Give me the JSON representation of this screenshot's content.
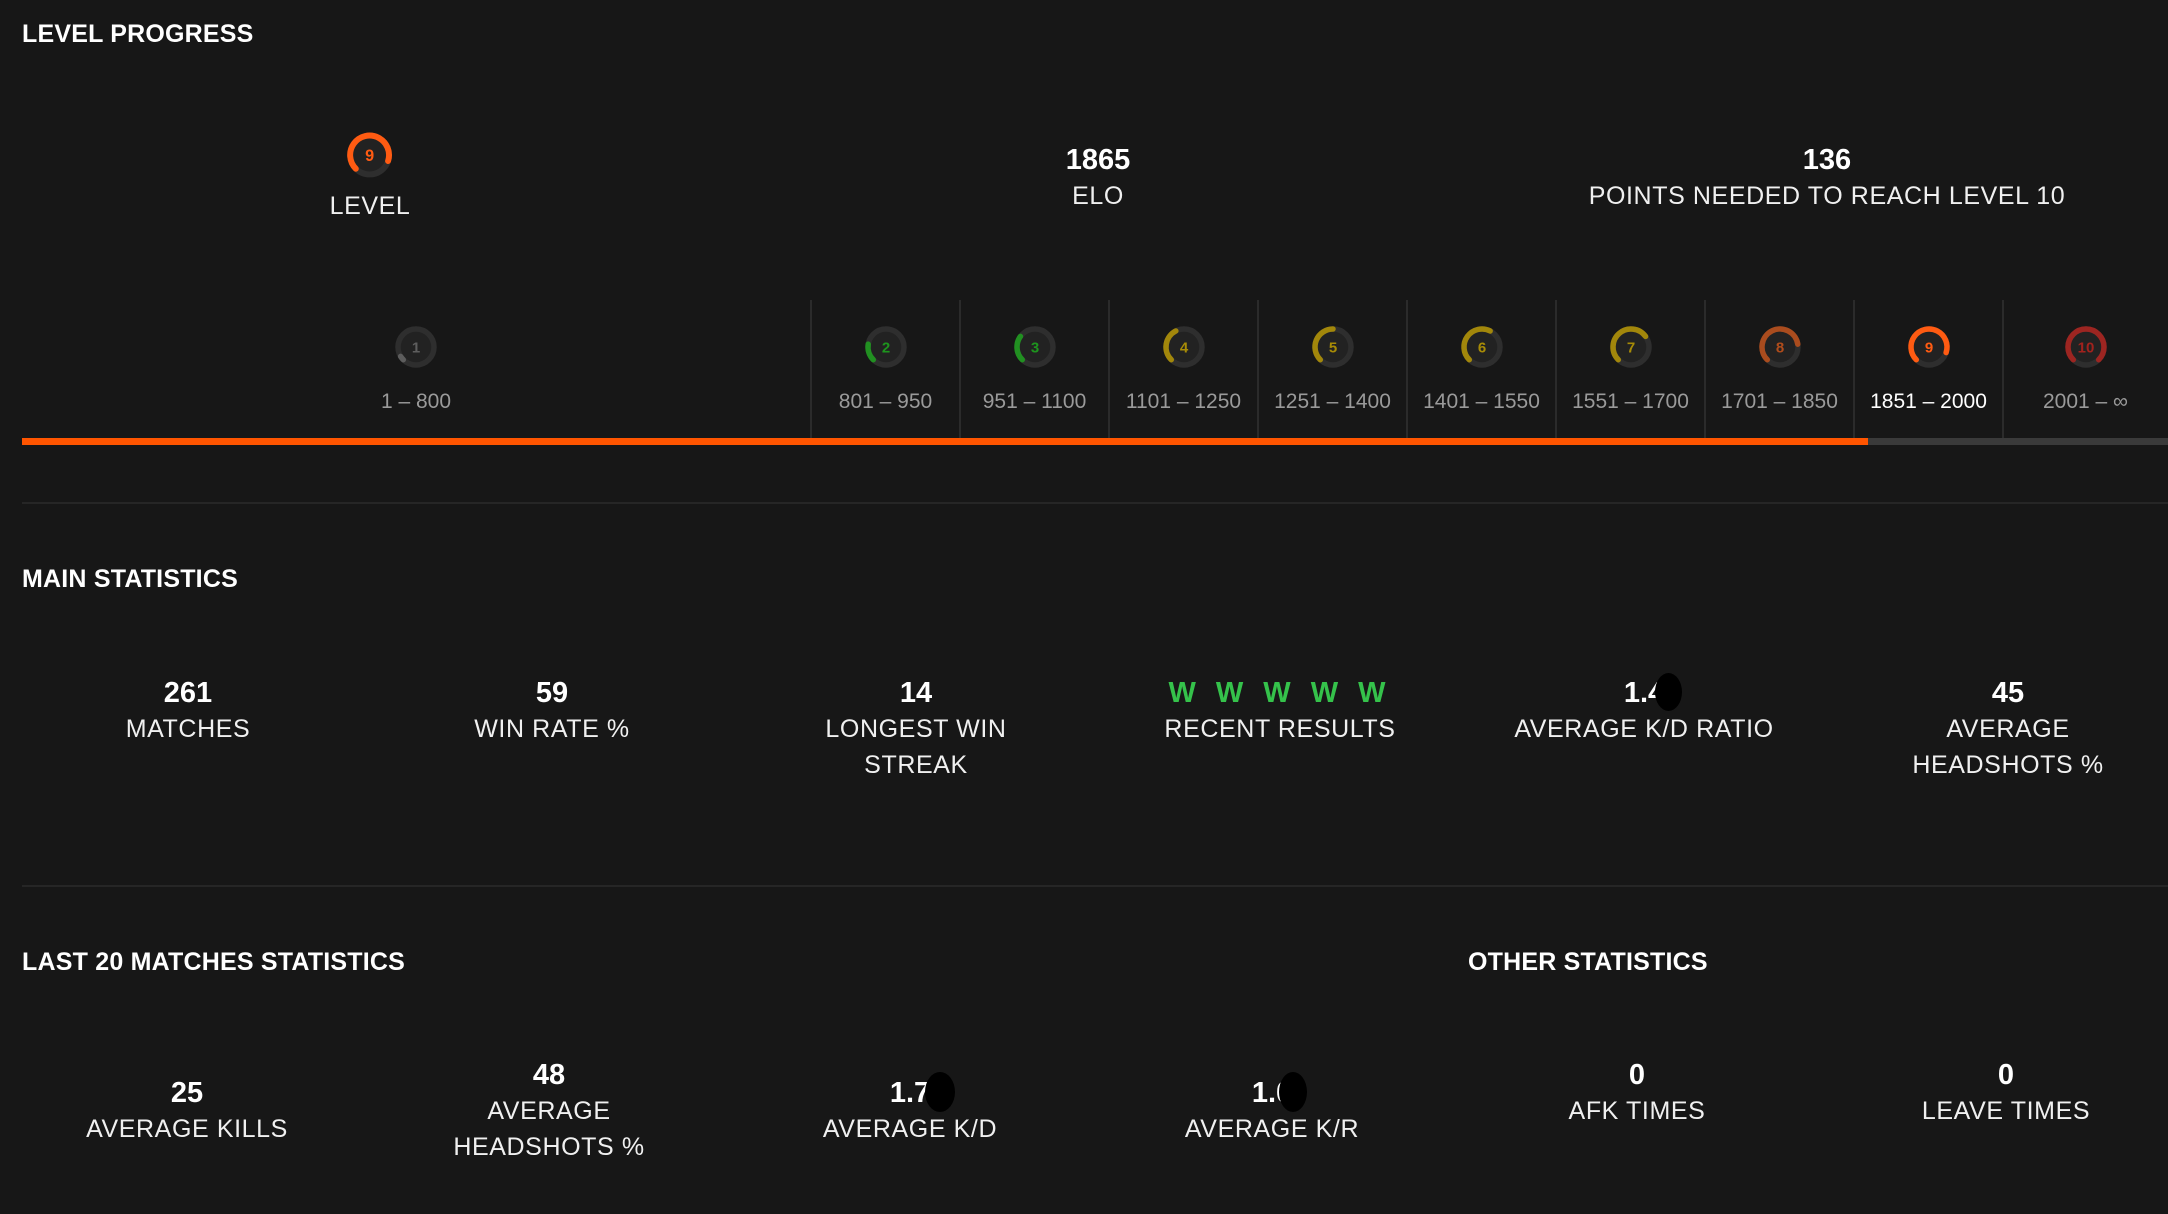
{
  "level_progress": {
    "title": "LEVEL PROGRESS",
    "current_level": "9",
    "level_label": "LEVEL",
    "elo_value": "1865",
    "elo_label": "ELO",
    "points_needed_value": "136",
    "points_needed_label": "POINTS NEEDED TO REACH LEVEL 10",
    "progress_fraction": 0.86,
    "levels": [
      {
        "level": "1",
        "range": "1 – 800",
        "color": "#6e6e6e",
        "fill": 0.05
      },
      {
        "level": "2",
        "range": "801 – 950",
        "color": "#1db21d",
        "fill": 0.2
      },
      {
        "level": "3",
        "range": "951 – 1100",
        "color": "#1db21d",
        "fill": 0.3
      },
      {
        "level": "4",
        "range": "1101 – 1250",
        "color": "#c9a600",
        "fill": 0.4
      },
      {
        "level": "5",
        "range": "1251 – 1400",
        "color": "#c9a600",
        "fill": 0.5
      },
      {
        "level": "6",
        "range": "1401 – 1550",
        "color": "#c9a600",
        "fill": 0.6
      },
      {
        "level": "7",
        "range": "1551 – 1700",
        "color": "#c9a600",
        "fill": 0.7
      },
      {
        "level": "8",
        "range": "1701 – 1850",
        "color": "#d4571a",
        "fill": 0.8
      },
      {
        "level": "9",
        "range": "1851 – 2000",
        "color": "#ff5b12",
        "fill": 0.9
      },
      {
        "level": "10",
        "range": "2001 – ∞",
        "color": "#c3231d",
        "fill": 1.0
      }
    ]
  },
  "main_statistics": {
    "title": "MAIN STATISTICS",
    "items": [
      {
        "value": "261",
        "label": "MATCHES"
      },
      {
        "value": "59",
        "label": "WIN RATE %"
      },
      {
        "value": "14",
        "label_line1": "LONGEST WIN",
        "label_line2": "STREAK"
      },
      {
        "value": "W W W W W",
        "label": "RECENT RESULTS"
      },
      {
        "value": "1.4",
        "label": "AVERAGE K/D RATIO"
      },
      {
        "value": "45",
        "label_line1": "AVERAGE",
        "label_line2": "HEADSHOTS %"
      }
    ]
  },
  "last20": {
    "title": "LAST 20 MATCHES STATISTICS",
    "items": [
      {
        "value": "25",
        "label": "AVERAGE KILLS"
      },
      {
        "value": "48",
        "label_line1": "AVERAGE",
        "label_line2": "HEADSHOTS %"
      },
      {
        "value": "1.7",
        "label": "AVERAGE K/D"
      },
      {
        "value": "1.0",
        "label": "AVERAGE K/R"
      }
    ]
  },
  "other": {
    "title": "OTHER STATISTICS",
    "items": [
      {
        "value": "0",
        "label": "AFK TIMES"
      },
      {
        "value": "0",
        "label": "LEAVE TIMES"
      }
    ]
  },
  "colors": {
    "accent": "#ff5500",
    "background": "#171717",
    "win": "#35c24b"
  }
}
